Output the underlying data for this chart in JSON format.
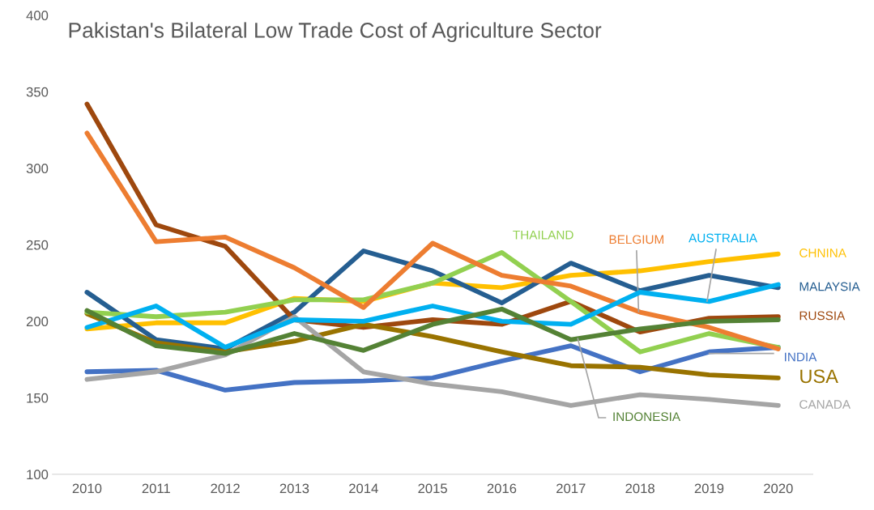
{
  "chart_data": {
    "type": "line",
    "title": "Pakistan's Bilateral Low Trade Cost of Agriculture Sector",
    "categories": [
      "2010",
      "2011",
      "2012",
      "2013",
      "2014",
      "2015",
      "2016",
      "2017",
      "2018",
      "2019",
      "2020"
    ],
    "series": [
      {
        "name": "CHNINA",
        "color": "#ffc000",
        "values": [
          195,
          199,
          199,
          215,
          213,
          225,
          222,
          230,
          233,
          239,
          244
        ]
      },
      {
        "name": "MALAYSIA",
        "color": "#255e91",
        "values": [
          219,
          188,
          182,
          206,
          246,
          233,
          212,
          238,
          220,
          230,
          222
        ]
      },
      {
        "name": "RUSSIA",
        "color": "#9e480e",
        "values": [
          342,
          263,
          249,
          201,
          196,
          201,
          198,
          213,
          193,
          202,
          203
        ]
      },
      {
        "name": "INDIA",
        "color": "#4472c4",
        "values": [
          167,
          168,
          155,
          160,
          161,
          163,
          174,
          184,
          167,
          180,
          183
        ]
      },
      {
        "name": "USA",
        "color": "#997300",
        "values": [
          205,
          186,
          180,
          187,
          198,
          190,
          180,
          171,
          170,
          165,
          163
        ]
      },
      {
        "name": "CANADA",
        "color": "#a5a5a5",
        "values": [
          162,
          167,
          178,
          203,
          167,
          159,
          154,
          145,
          152,
          149,
          145
        ]
      },
      {
        "name": "THAILAND",
        "color": "#92d050",
        "values": [
          206,
          203,
          206,
          214,
          214,
          225,
          245,
          213,
          180,
          192,
          183
        ]
      },
      {
        "name": "BELGIUM",
        "color": "#ed7d31",
        "values": [
          323,
          252,
          255,
          235,
          209,
          251,
          230,
          223,
          206,
          196,
          182
        ]
      },
      {
        "name": "AUSTRALIA",
        "color": "#00b0f0",
        "values": [
          196,
          210,
          183,
          201,
          200,
          210,
          200,
          198,
          219,
          213,
          224
        ]
      },
      {
        "name": "INDONESIA",
        "color": "#548235",
        "values": [
          207,
          184,
          179,
          192,
          181,
          198,
          208,
          188,
          195,
          200,
          201
        ]
      }
    ],
    "ylim": [
      100,
      400
    ],
    "yticks": [
      100,
      150,
      200,
      250,
      300,
      350,
      400
    ],
    "grid": false,
    "legend": false,
    "marker": "none",
    "line_style": "solid"
  }
}
